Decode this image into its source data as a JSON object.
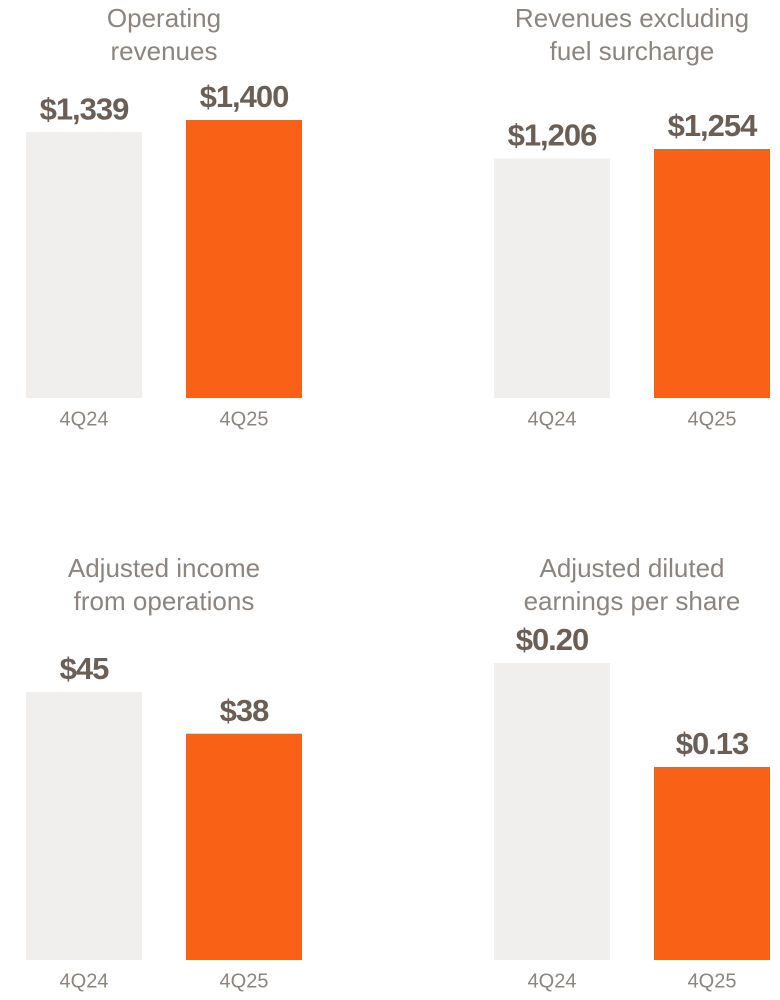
{
  "chart_data": [
    {
      "type": "bar",
      "title": [
        "Operating",
        "revenues"
      ],
      "categories": [
        "4Q24",
        "4Q25"
      ],
      "values": [
        1339,
        1400
      ],
      "value_labels": [
        "$1,339",
        "$1,400"
      ],
      "colors": [
        "#f0efed",
        "#f96216"
      ]
    },
    {
      "type": "bar",
      "title": [
        "Revenues excluding",
        "fuel surcharge"
      ],
      "categories": [
        "4Q24",
        "4Q25"
      ],
      "values": [
        1206,
        1254
      ],
      "value_labels": [
        "$1,206",
        "$1,254"
      ],
      "colors": [
        "#f0efed",
        "#f96216"
      ]
    },
    {
      "type": "bar",
      "title": [
        "Adjusted income",
        "from operations"
      ],
      "categories": [
        "4Q24",
        "4Q25"
      ],
      "values": [
        45,
        38
      ],
      "value_labels": [
        "$45",
        "$38"
      ],
      "colors": [
        "#f0efed",
        "#f96216"
      ]
    },
    {
      "type": "bar",
      "title": [
        "Adjusted diluted",
        "earnings per share"
      ],
      "categories": [
        "4Q24",
        "4Q25"
      ],
      "values": [
        0.2,
        0.13
      ],
      "value_labels": [
        "$0.20",
        "$0.13"
      ],
      "colors": [
        "#f0efed",
        "#f96216"
      ]
    }
  ]
}
